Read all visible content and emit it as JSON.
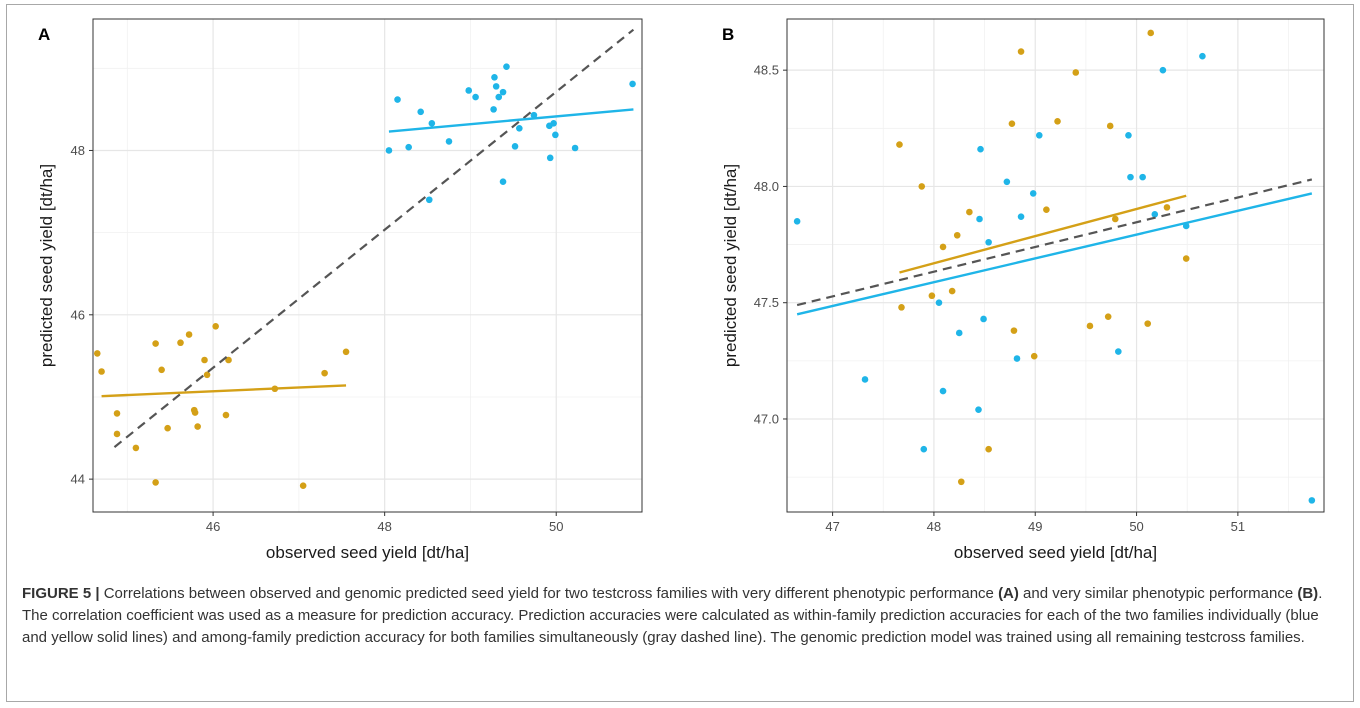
{
  "colors": {
    "blue": "#1fb5e8",
    "yellow": "#d4a017",
    "dashed": "#555555",
    "grid": "#e6e6e6"
  },
  "chart_data": [
    {
      "panel_label": "A",
      "type": "scatter",
      "xlabel": "observed seed yield [dt/ha]",
      "ylabel": "predicted seed yield [dt/ha]",
      "xlim": [
        44.6,
        51.0
      ],
      "ylim": [
        43.6,
        49.6
      ],
      "xticks": [
        46,
        48,
        50
      ],
      "yticks": [
        44,
        46,
        48
      ],
      "grid": true,
      "series": [
        {
          "color": "blue",
          "points": [
            [
              48.05,
              48.0
            ],
            [
              48.15,
              48.62
            ],
            [
              48.28,
              48.04
            ],
            [
              48.42,
              48.47
            ],
            [
              48.52,
              47.4
            ],
            [
              48.55,
              48.33
            ],
            [
              48.75,
              48.11
            ],
            [
              48.98,
              48.73
            ],
            [
              49.06,
              48.65
            ],
            [
              49.27,
              48.5
            ],
            [
              49.28,
              48.89
            ],
            [
              49.3,
              48.78
            ],
            [
              49.33,
              48.65
            ],
            [
              49.38,
              48.71
            ],
            [
              49.38,
              47.62
            ],
            [
              49.42,
              49.02
            ],
            [
              49.52,
              48.05
            ],
            [
              49.57,
              48.27
            ],
            [
              49.74,
              48.43
            ],
            [
              49.92,
              48.3
            ],
            [
              49.93,
              47.91
            ],
            [
              49.97,
              48.33
            ],
            [
              49.99,
              48.19
            ],
            [
              50.22,
              48.03
            ],
            [
              50.89,
              48.81
            ]
          ],
          "fit": [
            [
              48.05,
              48.23
            ],
            [
              50.9,
              48.5
            ]
          ]
        },
        {
          "color": "yellow",
          "points": [
            [
              44.65,
              45.53
            ],
            [
              44.7,
              45.31
            ],
            [
              44.88,
              44.8
            ],
            [
              44.88,
              44.55
            ],
            [
              45.1,
              44.38
            ],
            [
              45.33,
              45.65
            ],
            [
              45.33,
              43.96
            ],
            [
              45.4,
              45.33
            ],
            [
              45.47,
              44.62
            ],
            [
              45.62,
              45.66
            ],
            [
              45.72,
              45.76
            ],
            [
              45.78,
              44.84
            ],
            [
              45.79,
              44.81
            ],
            [
              45.82,
              44.64
            ],
            [
              45.9,
              45.45
            ],
            [
              45.93,
              45.27
            ],
            [
              46.03,
              45.86
            ],
            [
              46.15,
              44.78
            ],
            [
              46.18,
              45.45
            ],
            [
              46.72,
              45.1
            ],
            [
              47.05,
              43.92
            ],
            [
              47.3,
              45.29
            ],
            [
              47.55,
              45.55
            ]
          ],
          "fit": [
            [
              44.7,
              45.01
            ],
            [
              47.55,
              45.14
            ]
          ]
        }
      ],
      "dashed_line": [
        [
          44.85,
          44.39
        ],
        [
          50.9,
          49.47
        ]
      ]
    },
    {
      "panel_label": "B",
      "type": "scatter",
      "xlabel": "observed seed yield [dt/ha]",
      "ylabel": "predicted seed yield [dt/ha]",
      "xlim": [
        46.55,
        51.85
      ],
      "ylim": [
        46.6,
        48.72
      ],
      "xticks": [
        47,
        48,
        49,
        50,
        51
      ],
      "yticks": [
        47.0,
        47.5,
        48.0,
        48.5
      ],
      "ytick_labels": [
        "47.0",
        "47.5",
        "48.0",
        "48.5"
      ],
      "grid": true,
      "series": [
        {
          "color": "blue",
          "points": [
            [
              46.65,
              47.85
            ],
            [
              47.32,
              47.17
            ],
            [
              47.9,
              46.87
            ],
            [
              48.05,
              47.5
            ],
            [
              48.09,
              47.12
            ],
            [
              48.25,
              47.37
            ],
            [
              48.44,
              47.04
            ],
            [
              48.45,
              47.86
            ],
            [
              48.46,
              48.16
            ],
            [
              48.49,
              47.43
            ],
            [
              48.54,
              47.76
            ],
            [
              48.72,
              48.02
            ],
            [
              48.82,
              47.26
            ],
            [
              48.86,
              47.87
            ],
            [
              48.98,
              47.97
            ],
            [
              49.04,
              48.22
            ],
            [
              49.82,
              47.29
            ],
            [
              49.92,
              48.22
            ],
            [
              49.94,
              48.04
            ],
            [
              50.06,
              48.04
            ],
            [
              50.18,
              47.88
            ],
            [
              50.26,
              48.5
            ],
            [
              50.49,
              47.83
            ],
            [
              50.65,
              48.56
            ],
            [
              51.73,
              46.65
            ]
          ],
          "fit": [
            [
              46.65,
              47.45
            ],
            [
              51.73,
              47.97
            ]
          ]
        },
        {
          "color": "yellow",
          "points": [
            [
              47.66,
              48.18
            ],
            [
              47.68,
              47.48
            ],
            [
              47.88,
              48.0
            ],
            [
              47.98,
              47.53
            ],
            [
              48.09,
              47.74
            ],
            [
              48.18,
              47.55
            ],
            [
              48.23,
              47.79
            ],
            [
              48.27,
              46.73
            ],
            [
              48.35,
              47.89
            ],
            [
              48.54,
              46.87
            ],
            [
              48.77,
              48.27
            ],
            [
              48.79,
              47.38
            ],
            [
              48.86,
              48.58
            ],
            [
              48.99,
              47.27
            ],
            [
              49.11,
              47.9
            ],
            [
              49.22,
              48.28
            ],
            [
              49.4,
              48.49
            ],
            [
              49.54,
              47.4
            ],
            [
              49.72,
              47.44
            ],
            [
              49.74,
              48.26
            ],
            [
              49.79,
              47.86
            ],
            [
              50.11,
              47.41
            ],
            [
              50.14,
              48.66
            ],
            [
              50.3,
              47.91
            ],
            [
              50.49,
              47.69
            ]
          ],
          "fit": [
            [
              47.66,
              47.63
            ],
            [
              50.49,
              47.96
            ]
          ]
        }
      ],
      "dashed_line": [
        [
          46.65,
          47.49
        ],
        [
          51.73,
          48.03
        ]
      ]
    }
  ],
  "caption": {
    "figure_label": "FIGURE 5 |",
    "part1": " Correlations between observed and genomic predicted seed yield for two testcross families with very different phenotypic performance ",
    "ref_a": "(A)",
    "part2": " and very similar phenotypic performance ",
    "ref_b": "(B)",
    "part3": ". The correlation coefficient was used as a measure for prediction accuracy. Prediction accuracies were calculated as within-family prediction accuracies for each of the two families individually (blue and yellow solid lines) and among-family prediction accuracy for both families simultaneously (gray dashed line). The genomic prediction model was trained using all remaining testcross families."
  }
}
